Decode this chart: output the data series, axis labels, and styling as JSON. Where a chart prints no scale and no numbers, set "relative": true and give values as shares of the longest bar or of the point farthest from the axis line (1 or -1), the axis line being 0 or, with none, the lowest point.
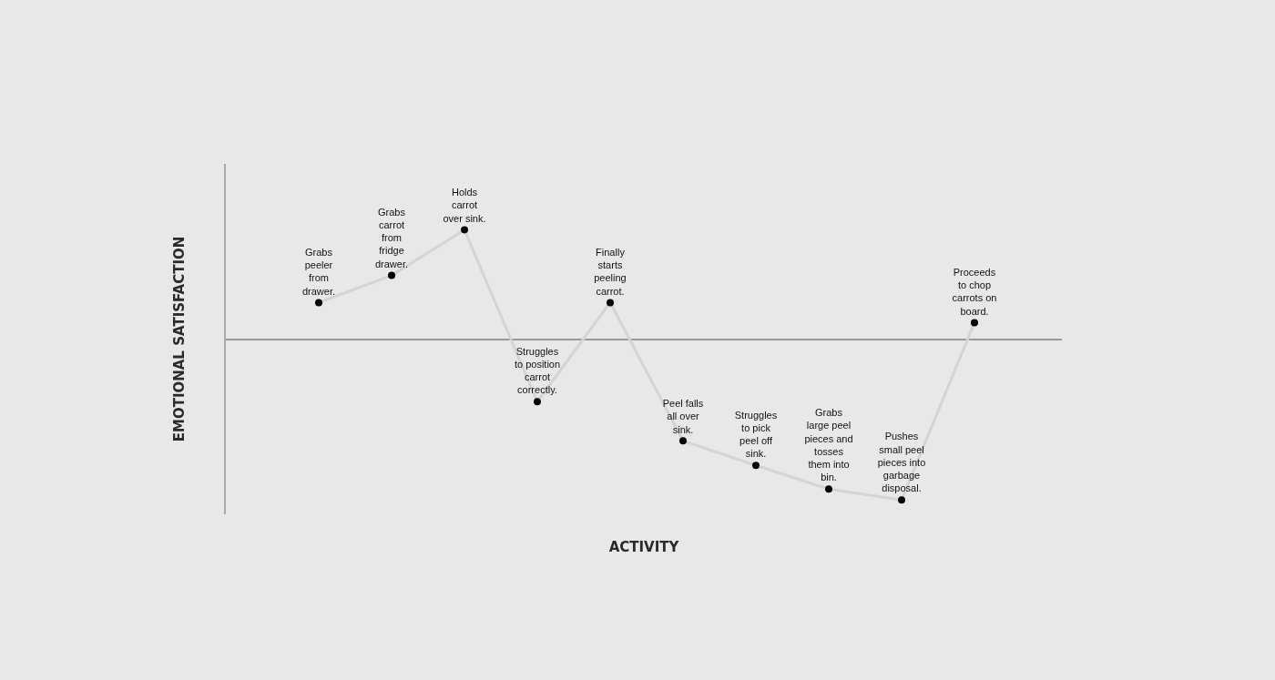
{
  "chart_data": {
    "type": "line",
    "relative": true,
    "xlabel": "ACTIVITY",
    "ylabel": "EMOTIONAL SATISFACTION",
    "categories": [
      "Grabs\npeeler\nfrom\ndrawer.",
      "Grabs\ncarrot\nfrom\nfridge\ndrawer.",
      "Holds\ncarrot\nover sink.",
      "Struggles\nto position\ncarrot\ncorrectly.",
      "Finally\nstarts\npeeling\ncarrot.",
      "Peel falls\nall over\nsink.",
      "Struggles\nto pick\npeel off\nsink.",
      "Grabs\nlarge peel\npieces and\ntosses\nthem into\nbin.",
      "Pushes\nsmall peel\npieces into\ngarbage\ndisposal.",
      "Proceeds\nto chop\ncarrots on\nboard."
    ],
    "series": [
      {
        "color": "#d4d4d4",
        "values": [
          0.233,
          0.403,
          0.688,
          -0.386,
          0.233,
          -0.631,
          -0.784,
          -0.932,
          -1,
          0.108
        ]
      }
    ],
    "marker": "circle",
    "line_style": "solid",
    "grid": false,
    "legend": false
  }
}
